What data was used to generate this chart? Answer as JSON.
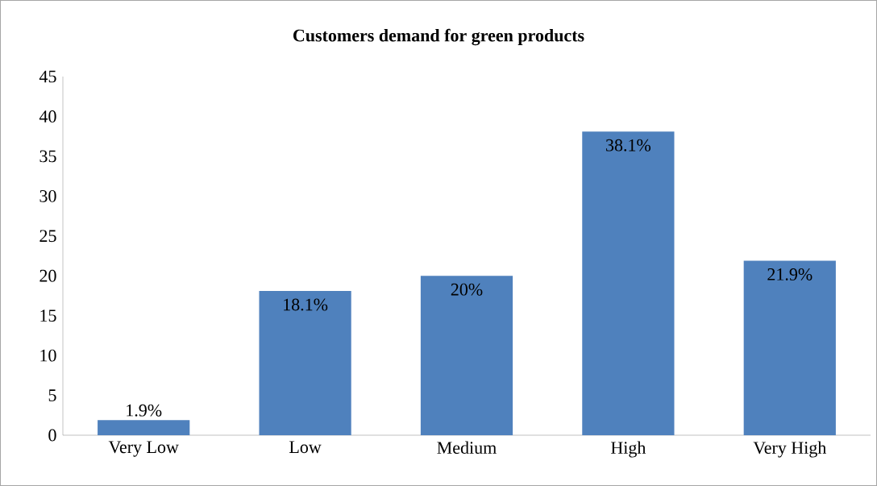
{
  "chart_data": {
    "type": "bar",
    "title": "Customers demand for green products",
    "categories": [
      "Very Low",
      "Low",
      "Medium",
      "High",
      "Very High"
    ],
    "values": [
      1.9,
      18.1,
      20,
      38.1,
      21.9
    ],
    "value_labels": [
      "1.9%",
      "18.1%",
      "20%",
      "38.1%",
      "21.9%"
    ],
    "color": "#4f81bd",
    "ylim": [
      0,
      45
    ],
    "yticks": [
      0,
      5,
      10,
      15,
      20,
      25,
      30,
      35,
      40,
      45
    ]
  }
}
